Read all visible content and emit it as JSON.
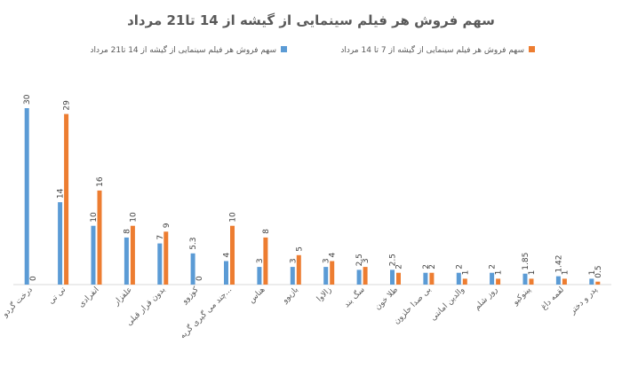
{
  "chart_data": {
    "type": "bar",
    "title": "سهم فروش هر فیلم سینمایی از گیشه از 14 تا21 مرداد",
    "xlabel": "",
    "ylabel": "",
    "ylim": [
      0,
      30
    ],
    "grid": false,
    "legend_position": "top",
    "categories": [
      "درخت گردو",
      "تی تی",
      "انفرادی",
      "علفزار",
      "بدون قرار قبلی",
      "کوزوو",
      "چند می گیری گریه...",
      "هناس",
      "بازیوو",
      "زالاوا",
      "سگ بند",
      "طلا خون",
      "بی صدا حلزون",
      "والدین امانتی",
      "روز شلم",
      "پینوکیو",
      "لقمه داغ",
      "پدر و دختر"
    ],
    "series": [
      {
        "name": "سهم فروش هر فیلم سینمایی از گیشه از 14 تا21 مرداد",
        "color": "#5B9BD5",
        "values": [
          30,
          14,
          10,
          8,
          7,
          5.3,
          4,
          3,
          3,
          3,
          2.5,
          2.5,
          2,
          2,
          2,
          1.85,
          1.42,
          1
        ],
        "labels": [
          "30",
          "14",
          "10",
          "8",
          "7",
          "5.3",
          "4",
          "3",
          "3",
          "3",
          "2.5",
          "2.5",
          "2",
          "2",
          "2",
          "1.85",
          "1.42",
          "1"
        ]
      },
      {
        "name": "سهم فروش هر فیلم سینمایی از گیشه از 7 تا 14 مرداد",
        "color": "#ED7D31",
        "values": [
          0,
          29,
          16,
          10,
          9,
          0,
          10,
          8,
          5,
          4,
          3,
          2,
          2,
          1,
          1,
          1,
          1,
          0.5
        ],
        "labels": [
          "0",
          "29",
          "16",
          "10",
          "9",
          "0",
          "10",
          "8",
          "5",
          "4",
          "3",
          "2",
          "2",
          "1",
          "1",
          "1",
          "1",
          "0.5"
        ]
      }
    ]
  }
}
